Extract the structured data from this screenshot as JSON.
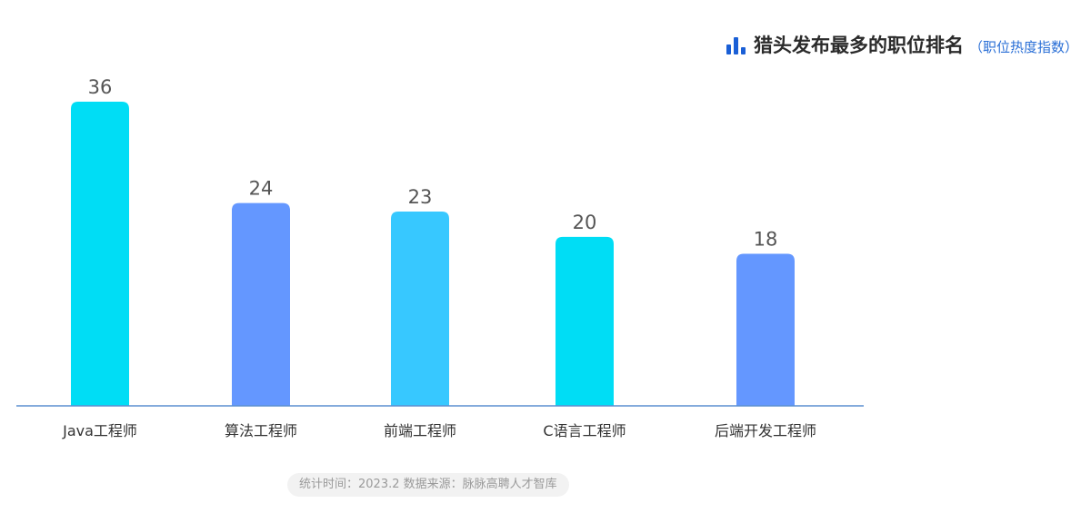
{
  "header": {
    "title": "猎头发布最多的职位排名",
    "subtitle": "（职位热度指数）"
  },
  "footer": {
    "source": "统计时间：2023.2  数据来源：脉脉高聘人才智库"
  },
  "colors": {
    "title_icon": "#1a5fd6",
    "axis": "#5b8fd0",
    "label_text": "#333333",
    "value_text": "#555555"
  },
  "chart_data": {
    "type": "bar",
    "categories": [
      "Java工程师",
      "算法工程师",
      "前端工程师",
      "C语言工程师",
      "后端开发工程师"
    ],
    "values": [
      36,
      24,
      23,
      20,
      18
    ],
    "bar_colors": [
      "#00DDF5",
      "#6497FF",
      "#37C8FF",
      "#00DDF5",
      "#6497FF"
    ],
    "title": "猎头发布最多的职位排名",
    "subtitle": "（职位热度指数）",
    "ylim": [
      0,
      36
    ],
    "grid": false,
    "data_labels": true
  }
}
